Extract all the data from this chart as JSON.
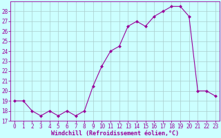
{
  "x": [
    0,
    1,
    2,
    3,
    4,
    5,
    6,
    7,
    8,
    9,
    10,
    11,
    12,
    13,
    14,
    15,
    16,
    17,
    18,
    19,
    20,
    21,
    22,
    23
  ],
  "y": [
    19,
    19,
    18,
    17.5,
    18,
    17.5,
    18,
    17.5,
    18,
    20.5,
    22.5,
    24,
    24.5,
    26.5,
    27,
    26.5,
    27.5,
    28,
    28.5,
    28.5,
    27.5,
    20,
    20,
    19.5
  ],
  "line_color": "#990099",
  "marker_color": "#990099",
  "bg_color": "#ccffff",
  "grid_color": "#aacccc",
  "xlabel": "Windchill (Refroidissement éolien,°C)",
  "xlabel_color": "#990099",
  "tick_color": "#990099",
  "spine_color": "#990099",
  "ylim": [
    17,
    29
  ],
  "yticks": [
    17,
    18,
    19,
    20,
    21,
    22,
    23,
    24,
    25,
    26,
    27,
    28
  ],
  "xlim": [
    -0.5,
    23.5
  ],
  "xticks": [
    0,
    1,
    2,
    3,
    4,
    5,
    6,
    7,
    8,
    9,
    10,
    11,
    12,
    13,
    14,
    15,
    16,
    17,
    18,
    19,
    20,
    21,
    22,
    23
  ],
  "tick_fontsize": 5.5,
  "xlabel_fontsize": 6.0
}
